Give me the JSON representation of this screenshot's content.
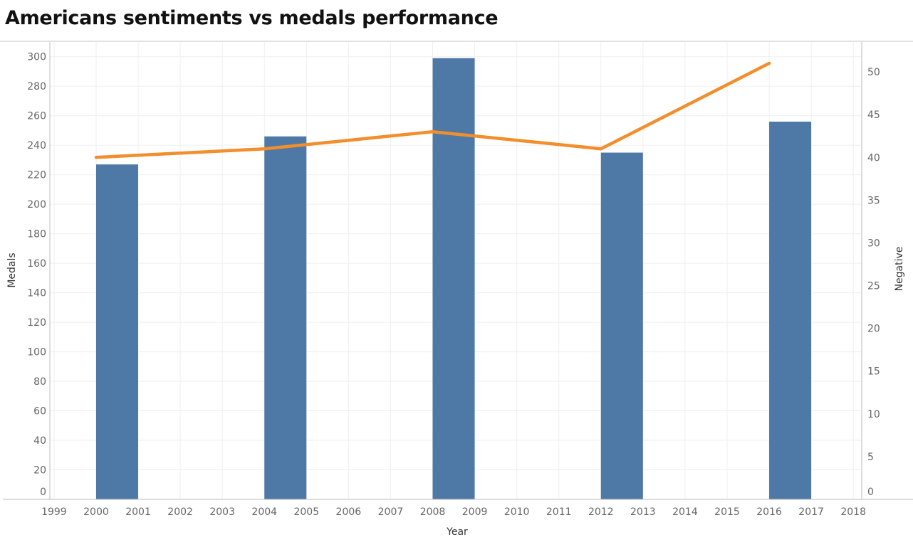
{
  "title": "Americans sentiments vs medals performance",
  "chart_data": {
    "type": "bar",
    "title": "Americans sentiments vs medals performance",
    "xlabel": "Year",
    "x_ticks": [
      "1999",
      "2000",
      "2001",
      "2002",
      "2003",
      "2004",
      "2005",
      "2006",
      "2007",
      "2008",
      "2009",
      "2010",
      "2011",
      "2012",
      "2013",
      "2014",
      "2015",
      "2016",
      "2017",
      "2018"
    ],
    "xlim": [
      1998.9,
      2018.2
    ],
    "left_axis": {
      "label": "Medals",
      "ylim": [
        0,
        310
      ],
      "ticks": [
        0,
        20,
        40,
        60,
        80,
        100,
        120,
        140,
        160,
        180,
        200,
        220,
        240,
        260,
        280,
        300
      ]
    },
    "right_axis": {
      "label": "Negative",
      "ylim": [
        0,
        53.5
      ],
      "ticks": [
        0,
        5,
        10,
        15,
        20,
        25,
        30,
        35,
        40,
        45,
        50
      ]
    },
    "grid": true,
    "series": [
      {
        "kind": "bar",
        "axis": "left",
        "color": "#4e79a7",
        "x": [
          2000,
          2004,
          2008,
          2012,
          2016
        ],
        "values": [
          227,
          246,
          299,
          235,
          256
        ]
      },
      {
        "kind": "line",
        "axis": "right",
        "color": "#f28e2b",
        "x": [
          2000,
          2004,
          2008,
          2012,
          2016
        ],
        "values": [
          40,
          41,
          43,
          41,
          51
        ]
      }
    ]
  }
}
